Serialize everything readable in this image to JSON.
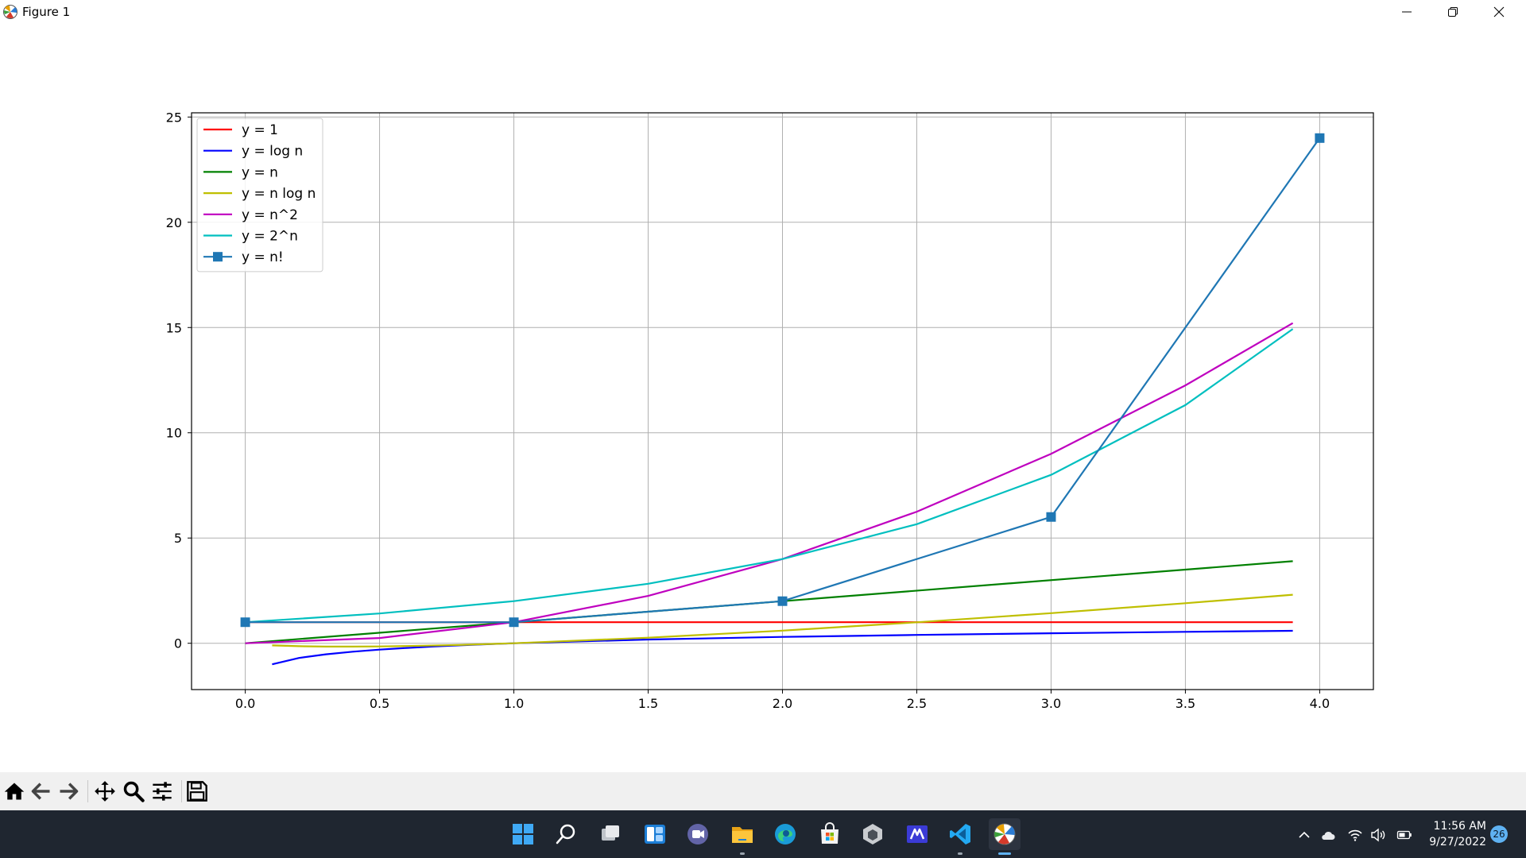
{
  "window": {
    "title": "Figure 1"
  },
  "chart_data": {
    "type": "line",
    "title": "",
    "xlabel": "",
    "ylabel": "",
    "xlim": [
      -0.2,
      4.2
    ],
    "ylim": [
      -2.2,
      25.2
    ],
    "grid": true,
    "legend_position": "top-left",
    "xticks": [
      "0.0",
      "0.5",
      "1.0",
      "1.5",
      "2.0",
      "2.5",
      "3.0",
      "3.5",
      "4.0"
    ],
    "yticks": [
      "0",
      "5",
      "10",
      "15",
      "20",
      "25"
    ],
    "series": [
      {
        "name": "y = 1",
        "color": "#ff0000",
        "marker": "none",
        "x": [
          0.0,
          3.9
        ],
        "y": [
          1,
          1
        ]
      },
      {
        "name": "y = log n",
        "color": "#0000ff",
        "marker": "none",
        "x": [
          0.1,
          0.2,
          0.3,
          0.4,
          0.5,
          0.6,
          0.7,
          0.8,
          0.9,
          1.0,
          1.5,
          2.0,
          2.5,
          3.0,
          3.5,
          3.9
        ],
        "y": [
          -1.0,
          -0.699,
          -0.523,
          -0.398,
          -0.301,
          -0.222,
          -0.155,
          -0.097,
          -0.046,
          0.0,
          0.176,
          0.301,
          0.398,
          0.477,
          0.544,
          0.591
        ]
      },
      {
        "name": "y = n",
        "color": "#008000",
        "marker": "none",
        "x": [
          0.0,
          3.9
        ],
        "y": [
          0.0,
          3.9
        ]
      },
      {
        "name": "y = n log n",
        "color": "#bfbf00",
        "marker": "none",
        "x": [
          0.1,
          0.2,
          0.3,
          0.4,
          0.5,
          0.6,
          0.8,
          1.0,
          1.5,
          2.0,
          2.5,
          3.0,
          3.5,
          3.9
        ],
        "y": [
          -0.1,
          -0.14,
          -0.157,
          -0.159,
          -0.151,
          -0.133,
          -0.078,
          0.0,
          0.264,
          0.602,
          0.995,
          1.431,
          1.904,
          2.305
        ]
      },
      {
        "name": "y = n^2",
        "color": "#bf00bf",
        "marker": "none",
        "x": [
          0.0,
          0.5,
          1.0,
          1.5,
          2.0,
          2.5,
          3.0,
          3.5,
          3.9
        ],
        "y": [
          0.0,
          0.25,
          1.0,
          2.25,
          4.0,
          6.25,
          9.0,
          12.25,
          15.21
        ]
      },
      {
        "name": "y = 2^n",
        "color": "#00bfbf",
        "marker": "none",
        "x": [
          0.0,
          0.5,
          1.0,
          1.5,
          2.0,
          2.5,
          3.0,
          3.5,
          3.9
        ],
        "y": [
          1.0,
          1.414,
          2.0,
          2.828,
          4.0,
          5.657,
          8.0,
          11.314,
          14.929
        ]
      },
      {
        "name": "y = n!",
        "color": "#1f77b4",
        "marker": "square",
        "x": [
          0,
          1,
          2,
          3,
          4
        ],
        "y": [
          1,
          1,
          2,
          6,
          24
        ]
      }
    ]
  },
  "toolbar": {
    "items": [
      "home-icon",
      "back-icon",
      "forward-icon",
      "pan-icon",
      "zoom-icon",
      "configure-subplots-icon",
      "save-icon"
    ]
  },
  "taskbar": {
    "time": "11:56 AM",
    "date": "9/27/2022",
    "notification_count": "26"
  }
}
